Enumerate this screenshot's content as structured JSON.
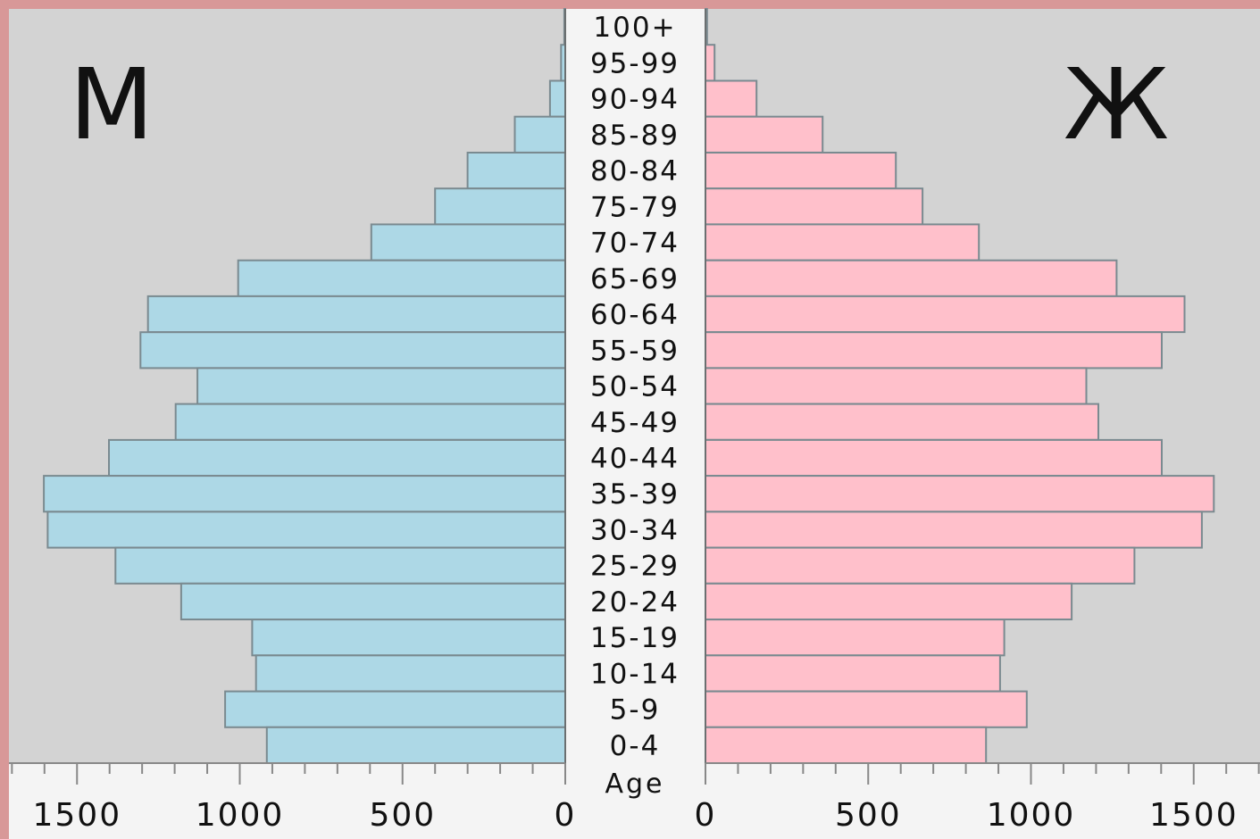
{
  "chart_data": {
    "type": "bar",
    "title": "",
    "xlabel": "",
    "ylabel": "Age",
    "left_label": "М",
    "right_label": "Ж",
    "categories": [
      "100+",
      "95-99",
      "90-94",
      "85-89",
      "80-84",
      "75-79",
      "70-74",
      "65-69",
      "60-64",
      "55-59",
      "50-54",
      "45-49",
      "40-44",
      "35-39",
      "30-34",
      "25-29",
      "20-24",
      "15-19",
      "10-14",
      "5-9",
      "0-4"
    ],
    "series": [
      {
        "name": "М",
        "values": [
          3,
          13,
          47,
          155,
          300,
          400,
          596,
          1005,
          1282,
          1305,
          1130,
          1197,
          1402,
          1602,
          1590,
          1382,
          1180,
          962,
          950,
          1045,
          917
        ]
      },
      {
        "name": "Ж",
        "values": [
          5,
          28,
          157,
          360,
          585,
          667,
          840,
          1263,
          1472,
          1402,
          1170,
          1207,
          1402,
          1562,
          1525,
          1318,
          1125,
          918,
          905,
          987,
          862
        ]
      }
    ],
    "xlim": [
      0,
      1700
    ],
    "x_ticks": [
      0,
      500,
      1000,
      1500
    ],
    "x_tick_labels_left": [
      "1500",
      "1000",
      "500",
      "0"
    ],
    "x_tick_labels_right": [
      "0",
      "500",
      "1000",
      "1500"
    ],
    "colors": {
      "male": "#add8e6",
      "female": "#ffc0cb",
      "plot_bg": "#d3d3d3",
      "border": "#d89898",
      "label_bg": "#f4f4f4",
      "bar_stroke": "#7a8a90"
    },
    "grid": false
  }
}
